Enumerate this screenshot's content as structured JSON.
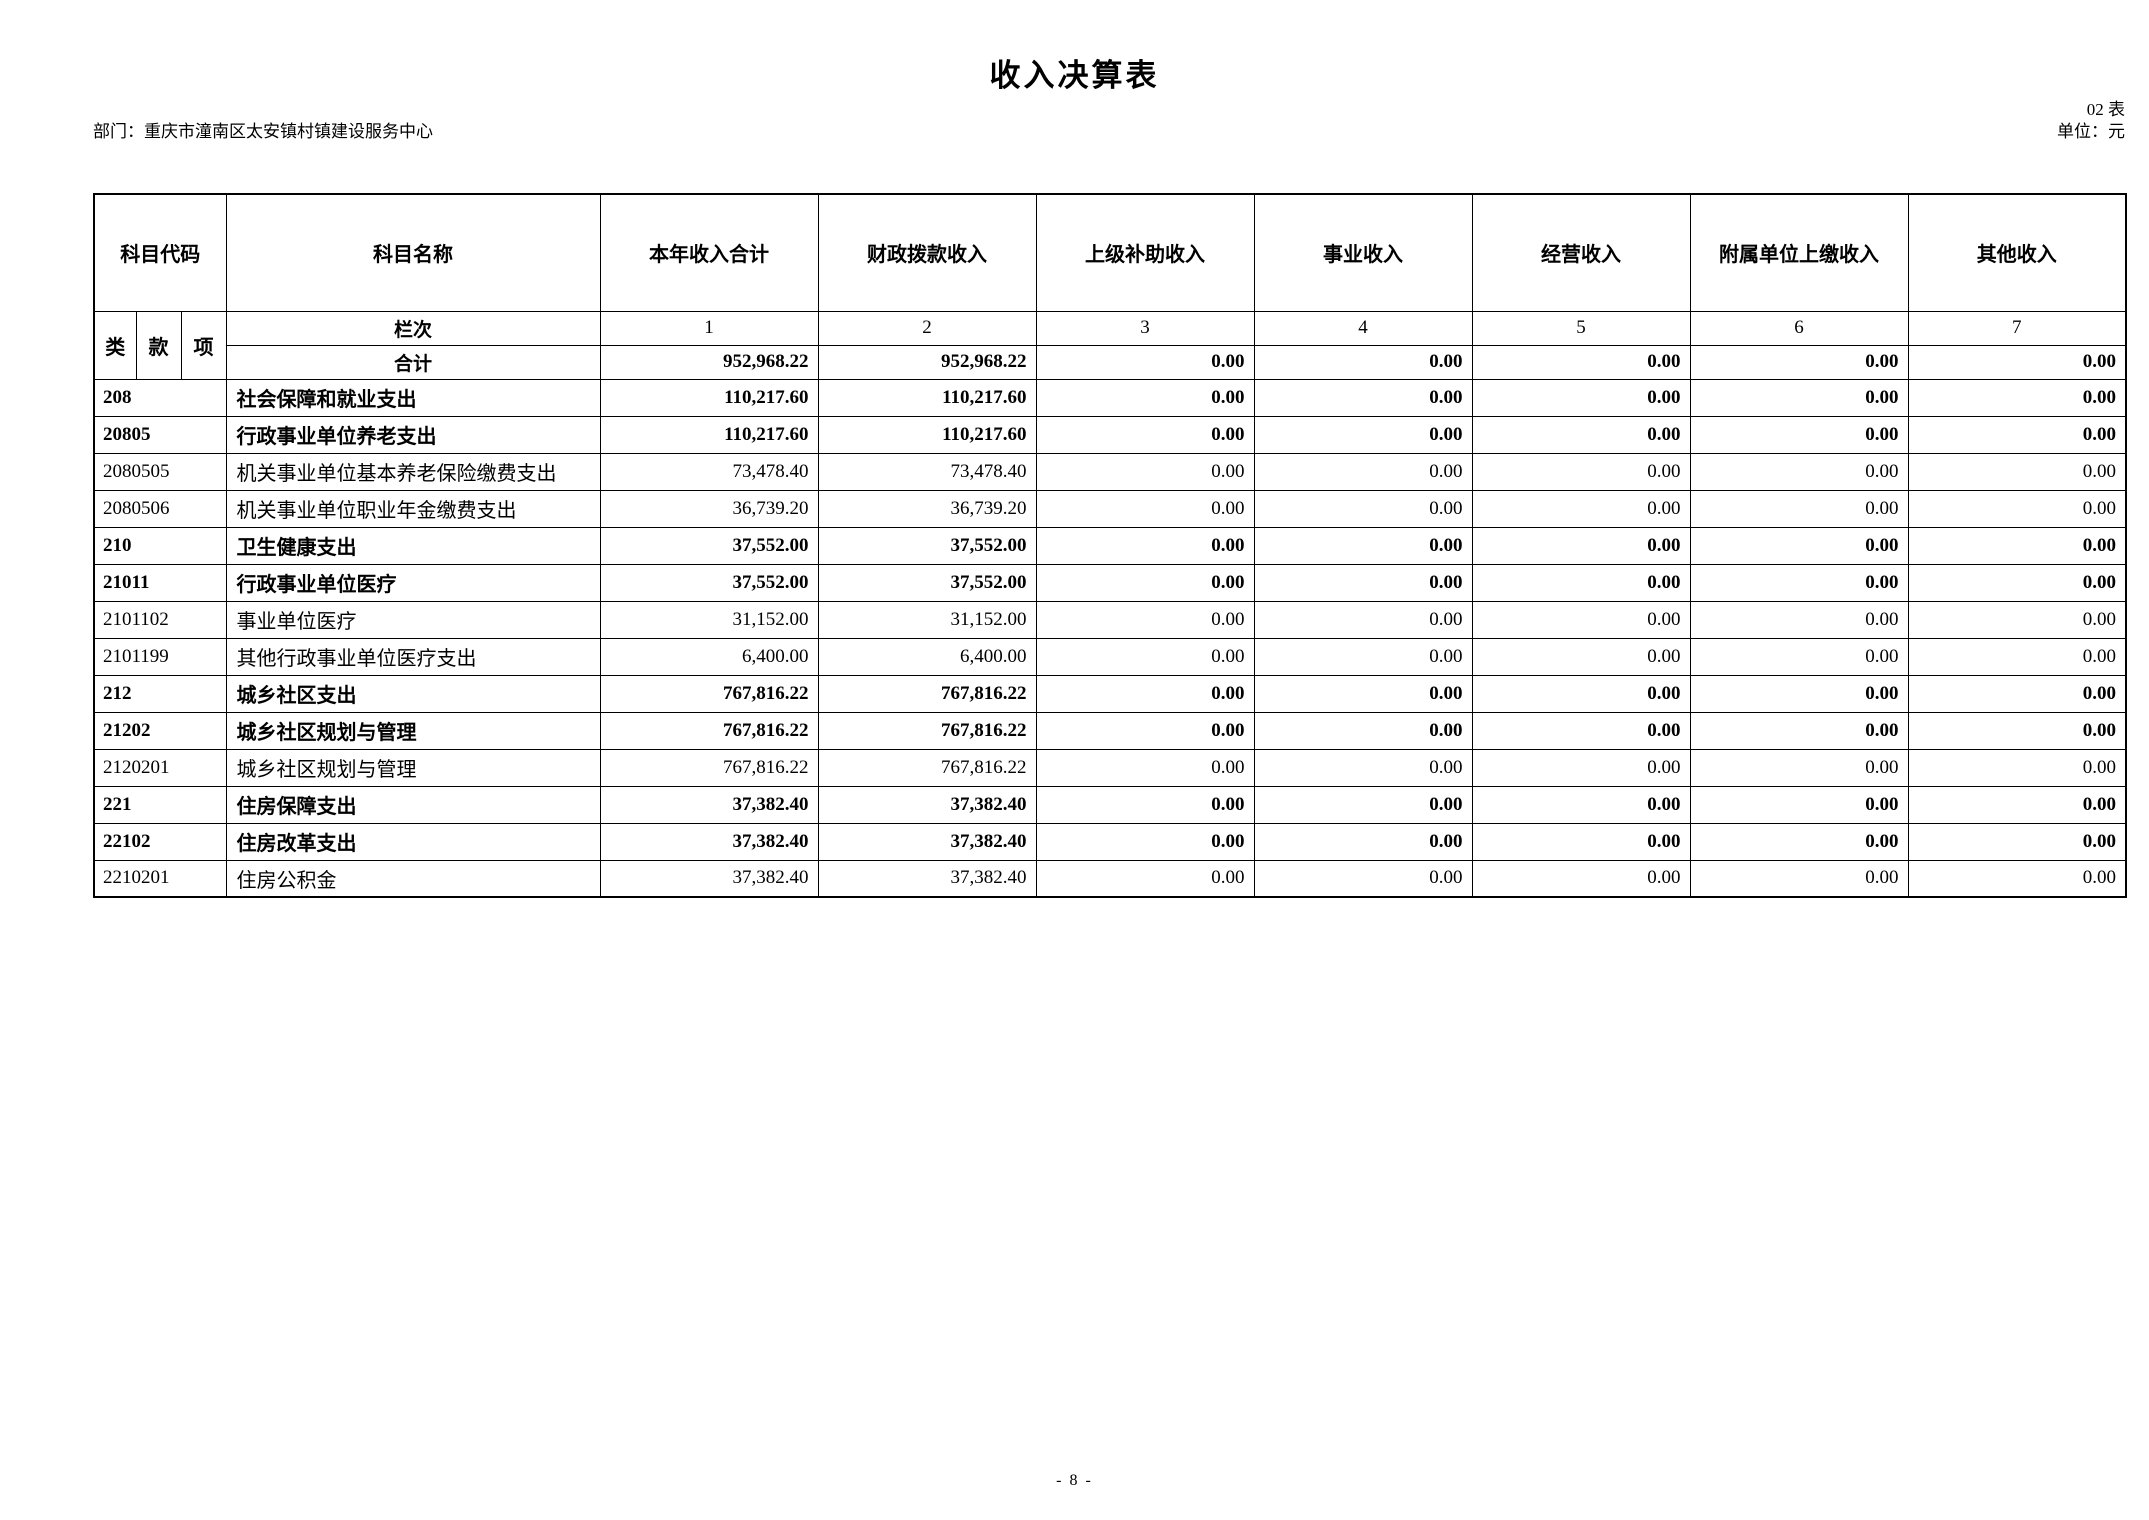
{
  "page": {
    "title": "收入决算表",
    "table_no": "02 表",
    "department_label": "部门：重庆市潼南区太安镇村镇建设服务中心",
    "unit_label": "单位：元",
    "page_number": "- 8 -"
  },
  "table": {
    "header": {
      "code": "科目代码",
      "name": "科目名称",
      "value_columns": [
        "本年收入合计",
        "财政拨款收入",
        "上级补助收入",
        "事业收入",
        "经营收入",
        "附属单位上缴收入",
        "其他收入"
      ],
      "code_sub": [
        "类",
        "款",
        "项"
      ],
      "lanci_label": "栏次",
      "column_numbers": [
        "1",
        "2",
        "3",
        "4",
        "5",
        "6",
        "7"
      ],
      "total_label": "合计"
    },
    "total_row": {
      "values": [
        "952,968.22",
        "952,968.22",
        "0.00",
        "0.00",
        "0.00",
        "0.00",
        "0.00"
      ]
    },
    "rows": [
      {
        "code": "208",
        "name": "社会保障和就业支出",
        "bold": true,
        "values": [
          "110,217.60",
          "110,217.60",
          "0.00",
          "0.00",
          "0.00",
          "0.00",
          "0.00"
        ]
      },
      {
        "code": "20805",
        "name": "行政事业单位养老支出",
        "bold": true,
        "values": [
          "110,217.60",
          "110,217.60",
          "0.00",
          "0.00",
          "0.00",
          "0.00",
          "0.00"
        ]
      },
      {
        "code": "2080505",
        "name": "机关事业单位基本养老保险缴费支出",
        "bold": false,
        "values": [
          "73,478.40",
          "73,478.40",
          "0.00",
          "0.00",
          "0.00",
          "0.00",
          "0.00"
        ]
      },
      {
        "code": "2080506",
        "name": "机关事业单位职业年金缴费支出",
        "bold": false,
        "values": [
          "36,739.20",
          "36,739.20",
          "0.00",
          "0.00",
          "0.00",
          "0.00",
          "0.00"
        ]
      },
      {
        "code": "210",
        "name": "卫生健康支出",
        "bold": true,
        "values": [
          "37,552.00",
          "37,552.00",
          "0.00",
          "0.00",
          "0.00",
          "0.00",
          "0.00"
        ]
      },
      {
        "code": "21011",
        "name": "行政事业单位医疗",
        "bold": true,
        "values": [
          "37,552.00",
          "37,552.00",
          "0.00",
          "0.00",
          "0.00",
          "0.00",
          "0.00"
        ]
      },
      {
        "code": "2101102",
        "name": "事业单位医疗",
        "bold": false,
        "values": [
          "31,152.00",
          "31,152.00",
          "0.00",
          "0.00",
          "0.00",
          "0.00",
          "0.00"
        ]
      },
      {
        "code": "2101199",
        "name": "其他行政事业单位医疗支出",
        "bold": false,
        "values": [
          "6,400.00",
          "6,400.00",
          "0.00",
          "0.00",
          "0.00",
          "0.00",
          "0.00"
        ]
      },
      {
        "code": "212",
        "name": "城乡社区支出",
        "bold": true,
        "values": [
          "767,816.22",
          "767,816.22",
          "0.00",
          "0.00",
          "0.00",
          "0.00",
          "0.00"
        ]
      },
      {
        "code": "21202",
        "name": "城乡社区规划与管理",
        "bold": true,
        "values": [
          "767,816.22",
          "767,816.22",
          "0.00",
          "0.00",
          "0.00",
          "0.00",
          "0.00"
        ]
      },
      {
        "code": "2120201",
        "name": "城乡社区规划与管理",
        "bold": false,
        "values": [
          "767,816.22",
          "767,816.22",
          "0.00",
          "0.00",
          "0.00",
          "0.00",
          "0.00"
        ]
      },
      {
        "code": "221",
        "name": "住房保障支出",
        "bold": true,
        "values": [
          "37,382.40",
          "37,382.40",
          "0.00",
          "0.00",
          "0.00",
          "0.00",
          "0.00"
        ]
      },
      {
        "code": "22102",
        "name": "住房改革支出",
        "bold": true,
        "values": [
          "37,382.40",
          "37,382.40",
          "0.00",
          "0.00",
          "0.00",
          "0.00",
          "0.00"
        ]
      },
      {
        "code": "2210201",
        "name": "住房公积金",
        "bold": false,
        "values": [
          "37,382.40",
          "37,382.40",
          "0.00",
          "0.00",
          "0.00",
          "0.00",
          "0.00"
        ]
      }
    ]
  }
}
